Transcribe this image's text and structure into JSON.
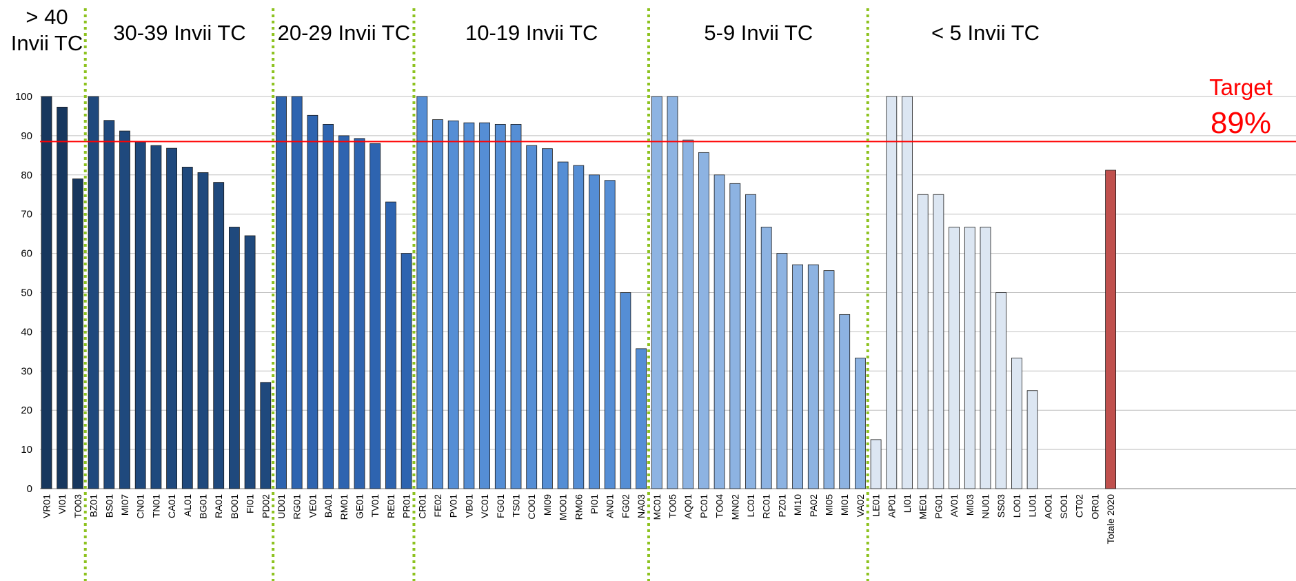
{
  "chart_data": {
    "type": "bar",
    "ylim": [
      0,
      100
    ],
    "yticks": [
      0,
      10,
      20,
      30,
      40,
      50,
      60,
      70,
      80,
      90,
      100
    ],
    "grid": true,
    "target": {
      "value": 88.5,
      "label_line1": "Target",
      "label_line2": "89%",
      "color": "#ff0000"
    },
    "groups": [
      {
        "label_lines": [
          "> 40",
          "Invii TC"
        ],
        "fill": "#17375e",
        "bars": [
          {
            "category": "VR01",
            "value": 100
          },
          {
            "category": "VI01",
            "value": 97.3
          },
          {
            "category": "TO03",
            "value": 79
          }
        ]
      },
      {
        "label_lines": [
          "30-39 Invii TC"
        ],
        "fill": "#1f497d",
        "bars": [
          {
            "category": "BZ01",
            "value": 100
          },
          {
            "category": "BS01",
            "value": 93.9
          },
          {
            "category": "MI07",
            "value": 91.2
          },
          {
            "category": "CN01",
            "value": 88.4
          },
          {
            "category": "TN01",
            "value": 87.5
          },
          {
            "category": "CA01",
            "value": 86.8
          },
          {
            "category": "AL01",
            "value": 82
          },
          {
            "category": "BG01",
            "value": 80.6
          },
          {
            "category": "RA01",
            "value": 78.1
          },
          {
            "category": "BO01",
            "value": 66.7
          },
          {
            "category": "FI01",
            "value": 64.5
          },
          {
            "category": "PD02",
            "value": 27.1
          }
        ]
      },
      {
        "label_lines": [
          "20-29 Invii TC"
        ],
        "fill": "#2e64b0",
        "bars": [
          {
            "category": "UD01",
            "value": 100
          },
          {
            "category": "RG01",
            "value": 100
          },
          {
            "category": "VE01",
            "value": 95.2
          },
          {
            "category": "BA01",
            "value": 92.9
          },
          {
            "category": "RM01",
            "value": 90
          },
          {
            "category": "GE01",
            "value": 89.3
          },
          {
            "category": "TV01",
            "value": 88
          },
          {
            "category": "RE01",
            "value": 73.1
          },
          {
            "category": "PR01",
            "value": 60
          }
        ]
      },
      {
        "label_lines": [
          "10-19 Invii TC"
        ],
        "fill": "#558ed5",
        "bars": [
          {
            "category": "CR01",
            "value": 100
          },
          {
            "category": "FE02",
            "value": 94.1
          },
          {
            "category": "PV01",
            "value": 93.8
          },
          {
            "category": "VB01",
            "value": 93.3
          },
          {
            "category": "VC01",
            "value": 93.3
          },
          {
            "category": "FG01",
            "value": 92.9
          },
          {
            "category": "TS01",
            "value": 92.9
          },
          {
            "category": "CO01",
            "value": 87.5
          },
          {
            "category": "MI09",
            "value": 86.7
          },
          {
            "category": "MO01",
            "value": 83.3
          },
          {
            "category": "RM06",
            "value": 82.4
          },
          {
            "category": "PI01",
            "value": 80
          },
          {
            "category": "AN01",
            "value": 78.6
          },
          {
            "category": "FG02",
            "value": 50
          },
          {
            "category": "NA03",
            "value": 35.7
          }
        ]
      },
      {
        "label_lines": [
          "5-9 Invii TC"
        ],
        "fill": "#8db3e2",
        "bars": [
          {
            "category": "MC01",
            "value": 100
          },
          {
            "category": "TO05",
            "value": 100
          },
          {
            "category": "AQ01",
            "value": 88.9
          },
          {
            "category": "PC01",
            "value": 85.7
          },
          {
            "category": "TO04",
            "value": 80
          },
          {
            "category": "MN02",
            "value": 77.8
          },
          {
            "category": "LC01",
            "value": 75
          },
          {
            "category": "RC01",
            "value": 66.7
          },
          {
            "category": "PZ01",
            "value": 60
          },
          {
            "category": "MI10",
            "value": 57.1
          },
          {
            "category": "PA02",
            "value": 57.1
          },
          {
            "category": "MI05",
            "value": 55.6
          },
          {
            "category": "MI01",
            "value": 44.4
          },
          {
            "category": "VA02",
            "value": 33.3
          }
        ]
      },
      {
        "label_lines": [
          "< 5 Invii TC"
        ],
        "fill": "#dce6f2",
        "bars": [
          {
            "category": "LE01",
            "value": 12.5
          },
          {
            "category": "AP01",
            "value": 100
          },
          {
            "category": "LI01",
            "value": 100
          },
          {
            "category": "ME01",
            "value": 75
          },
          {
            "category": "PG01",
            "value": 75
          },
          {
            "category": "AV01",
            "value": 66.7
          },
          {
            "category": "MI03",
            "value": 66.7
          },
          {
            "category": "NU01",
            "value": 66.7
          },
          {
            "category": "SS03",
            "value": 50
          },
          {
            "category": "LO01",
            "value": 33.3
          },
          {
            "category": "LU01",
            "value": 25
          },
          {
            "category": "AO01",
            "value": 0
          },
          {
            "category": "SO01",
            "value": 0
          },
          {
            "category": "CT02",
            "value": 0
          },
          {
            "category": "OR01",
            "value": 0
          }
        ]
      },
      {
        "label_lines": [],
        "fill": "#c0504d",
        "bars": [
          {
            "category": "Totale 2020",
            "value": 81.2
          }
        ]
      }
    ],
    "divider_color": "#8dc21f"
  }
}
